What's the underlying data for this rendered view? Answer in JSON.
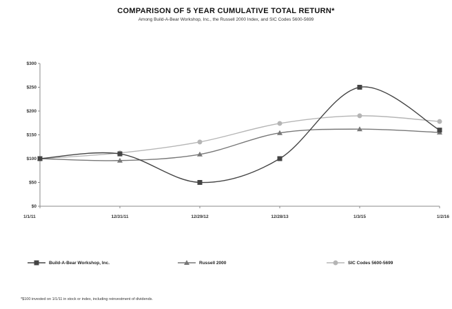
{
  "chart_data": {
    "type": "line",
    "title": "COMPARISON OF 5 YEAR CUMULATIVE TOTAL RETURN*",
    "subtitle": "Among Build-A-Bear Workshop, Inc., the Russell 2000 Index, and SIC Codes 5600-5699",
    "categories": [
      "1/1/11",
      "12/31/11",
      "12/29/12",
      "12/28/13",
      "1/3/15",
      "1/2/16"
    ],
    "y_ticks": [
      "$0",
      "$50",
      "$100",
      "$150",
      "$200",
      "$250",
      "$300"
    ],
    "ylim": [
      0,
      300
    ],
    "grid": false,
    "legend_position": "bottom",
    "series": [
      {
        "name": "Build-A-Bear Workshop, Inc.",
        "values": [
          100,
          110,
          50,
          100,
          250,
          160
        ],
        "color": "#444444",
        "marker": "square"
      },
      {
        "name": "Russell 2000",
        "values": [
          100,
          96,
          109,
          154,
          162,
          155
        ],
        "color": "#777777",
        "marker": "triangle"
      },
      {
        "name": "SIC Codes 5600-5699",
        "values": [
          100,
          112,
          135,
          174,
          190,
          178
        ],
        "color": "#b5b5b5",
        "marker": "circle"
      }
    ],
    "footnote": "*$100 invested on 1/1/11 in stock or index, including reinvestment of dividends."
  }
}
